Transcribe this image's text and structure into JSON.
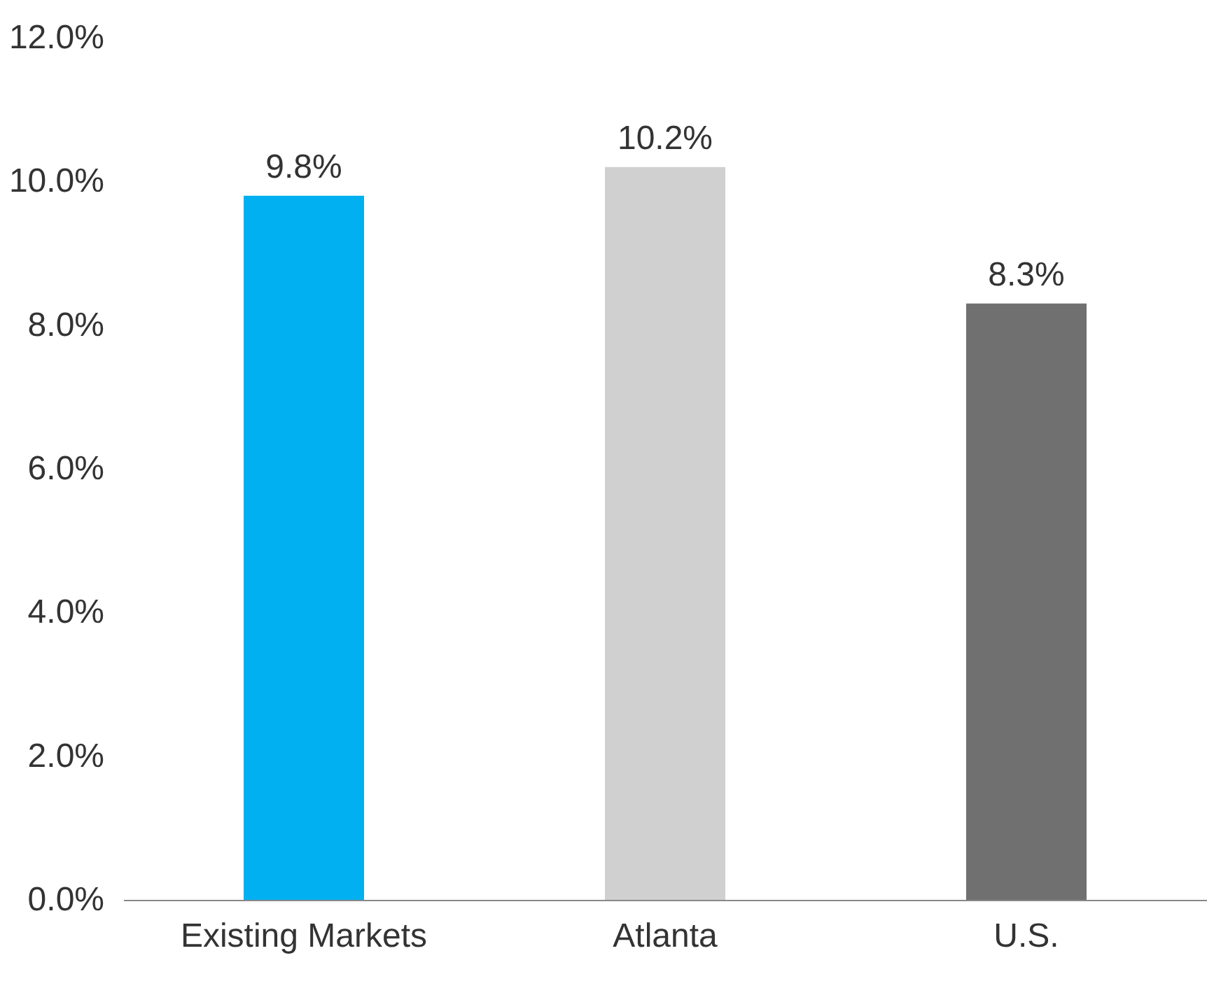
{
  "chart_data": {
    "type": "bar",
    "categories": [
      "Existing Markets",
      "Atlanta",
      "U.S."
    ],
    "values": [
      9.8,
      10.2,
      8.3
    ],
    "colors": [
      "#00b0f0",
      "#d0d0d0",
      "#707070"
    ],
    "value_labels": [
      "9.8%",
      "10.2%",
      "8.3%"
    ],
    "ylim": [
      0,
      12
    ],
    "yticks": [
      {
        "value": 0,
        "label": "0.0%"
      },
      {
        "value": 2,
        "label": "2.0%"
      },
      {
        "value": 4,
        "label": "4.0%"
      },
      {
        "value": 6,
        "label": "6.0%"
      },
      {
        "value": 8,
        "label": "8.0%"
      },
      {
        "value": 10,
        "label": "10.0%"
      },
      {
        "value": 12,
        "label": "12.0%"
      }
    ],
    "grid": false
  }
}
